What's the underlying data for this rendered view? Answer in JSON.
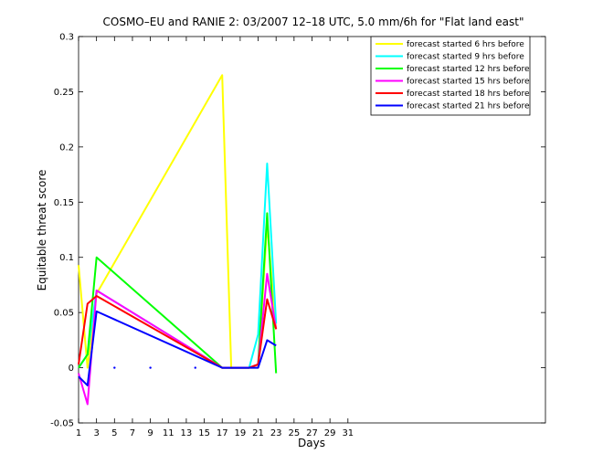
{
  "chart_data": {
    "type": "line",
    "title": "COSMO–EU and RANIE 2: 03/2007 12–18 UTC, 5.0 mm/6h for \"Flat land east\"",
    "xlabel": "Days",
    "ylabel": "Equitable threat score",
    "xlim": [
      1,
      53
    ],
    "ylim": [
      -0.05,
      0.3
    ],
    "xticks": [
      "1",
      "3",
      "5",
      "7",
      "9",
      "11",
      "13",
      "15",
      "17",
      "19",
      "21",
      "23",
      "25",
      "27",
      "29",
      "31"
    ],
    "yticks": [
      "-0.05",
      "0",
      "0.05",
      "0.1",
      "0.15",
      "0.2",
      "0.25",
      "0.3"
    ],
    "legend_position": "top-right",
    "grid": false,
    "series": [
      {
        "name": "forecast started 6 hrs before",
        "color": "#ffff00",
        "x": [
          1,
          2,
          3,
          17,
          18,
          20,
          21,
          22,
          23
        ],
        "y": [
          0.093,
          0.0,
          0.067,
          0.265,
          0.0,
          0.0,
          0.0,
          0.13,
          0.035
        ]
      },
      {
        "name": "forecast started 9 hrs before",
        "color": "#00ffff",
        "x": [
          1,
          2,
          3,
          17,
          18,
          19,
          20,
          21,
          22,
          23
        ],
        "y": [
          0.0,
          0.012,
          0.07,
          0.0,
          0.0,
          0.0,
          0.0,
          0.03,
          0.185,
          0.04
        ]
      },
      {
        "name": "forecast started 12 hrs before",
        "color": "#00ff00",
        "x": [
          1,
          2,
          3,
          17,
          18,
          19,
          20,
          21,
          22,
          23
        ],
        "y": [
          0.0,
          0.012,
          0.1,
          0.0,
          0.0,
          0.0,
          0.0,
          0.003,
          0.14,
          -0.005
        ]
      },
      {
        "name": "forecast started 15 hrs before",
        "color": "#ff00ff",
        "x": [
          1,
          2,
          3,
          17,
          18,
          19,
          20,
          21,
          22,
          23
        ],
        "y": [
          -0.005,
          -0.033,
          0.07,
          0.0,
          0.0,
          0.0,
          0.0,
          0.003,
          0.085,
          0.035
        ]
      },
      {
        "name": "forecast started 18 hrs before",
        "color": "#ff0000",
        "x": [
          1,
          2,
          3,
          17,
          18,
          19,
          20,
          21,
          22,
          23
        ],
        "y": [
          0.003,
          0.058,
          0.065,
          0.0,
          0.0,
          0.0,
          0.0,
          0.003,
          0.062,
          0.035
        ]
      },
      {
        "name": "forecast started 21 hrs before",
        "color": "#0000ff",
        "x": [
          1,
          2,
          3,
          17,
          18,
          19,
          20,
          21,
          22,
          23
        ],
        "y": [
          -0.008,
          -0.016,
          0.051,
          0.0,
          0.0,
          0.0,
          0.0,
          0.0,
          0.025,
          0.02
        ]
      }
    ],
    "isolated_points": {
      "color": "#0000ff",
      "x": [
        5,
        9,
        14
      ],
      "y": [
        0.0,
        0.0,
        0.0
      ]
    }
  }
}
